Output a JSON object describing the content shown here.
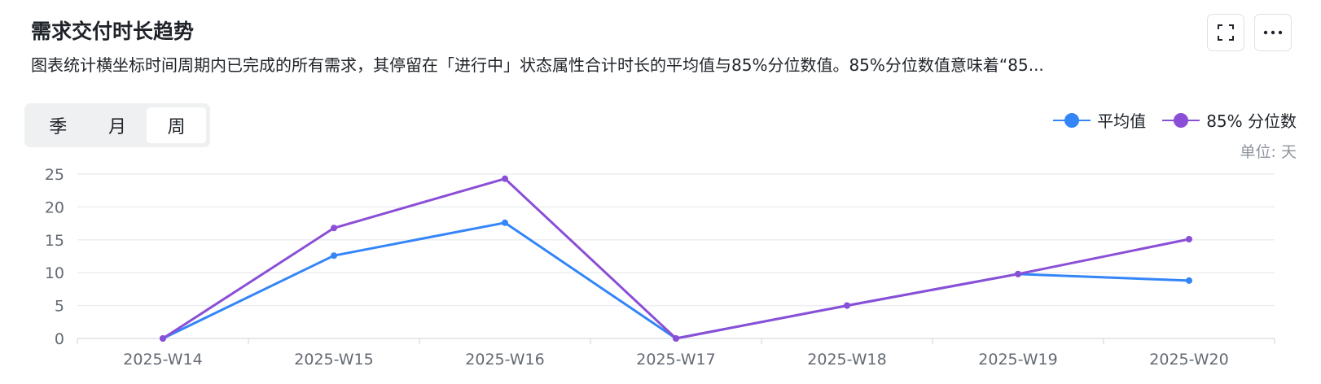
{
  "header": {
    "title": "需求交付时长趋势",
    "description": "图表统计横坐标时间周期内已完成的所有需求，其停留在「进行中」状态属性合计时长的平均值与85%分位数值。85%分位数值意味着“85..."
  },
  "toolbar": {
    "fullscreen_icon": "fullscreen-icon",
    "more_icon": "more-icon"
  },
  "period_tabs": [
    {
      "label": "季",
      "active": false
    },
    {
      "label": "月",
      "active": false
    },
    {
      "label": "周",
      "active": true
    }
  ],
  "unit_label": "单位: 天",
  "colors": {
    "series_avg": "#3385f8",
    "series_p85": "#8a4fd6",
    "grid": "#eceef1",
    "axis": "#dfe1e5"
  },
  "chart_data": {
    "type": "line",
    "categories": [
      "2025-W14",
      "2025-W15",
      "2025-W16",
      "2025-W17",
      "2025-W18",
      "2025-W19",
      "2025-W20"
    ],
    "y_ticks": [
      0,
      5,
      10,
      15,
      20,
      25
    ],
    "ylim": [
      0,
      25
    ],
    "grid": true,
    "legend_position": "top-right",
    "series": [
      {
        "name": "平均值",
        "color": "#3385f8",
        "values": [
          0,
          12.6,
          17.6,
          0,
          5,
          9.8,
          8.8
        ]
      },
      {
        "name": "85% 分位数",
        "color": "#8a4fd6",
        "values": [
          0,
          16.8,
          24.3,
          0,
          5,
          9.8,
          15.1
        ]
      }
    ]
  }
}
